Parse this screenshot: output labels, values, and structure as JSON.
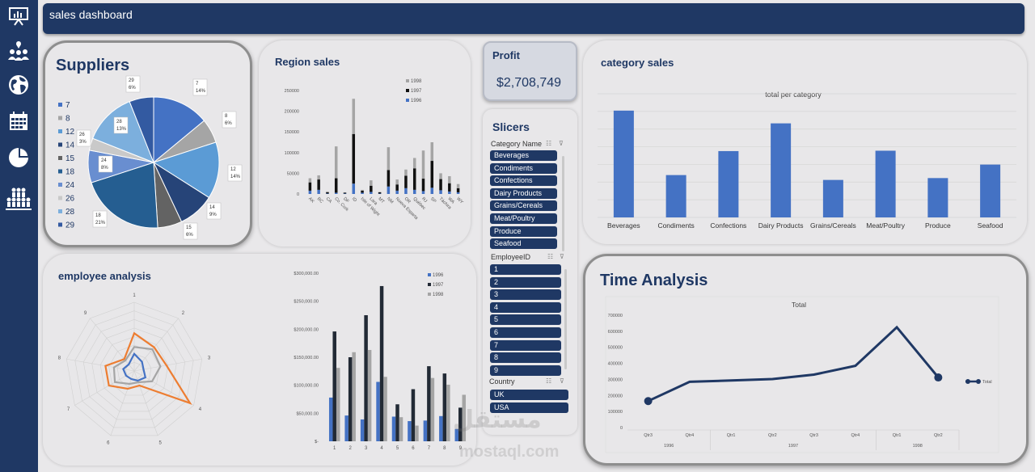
{
  "header": {
    "title": "sales dashboard"
  },
  "sidebar": {
    "icons": [
      "presentation-icon",
      "people-location-icon",
      "globe-icon",
      "calendar-icon",
      "pie-chart-icon",
      "team-icon"
    ]
  },
  "colors": {
    "navy": "#1f3864",
    "blue": "#4472c4",
    "dark": "#262626",
    "gray": "#a5a5a5",
    "orange": "#ed7d31",
    "light_blue": "#5b9bd5"
  },
  "suppliers": {
    "title": "Suppliers",
    "legend": [
      "7",
      "8",
      "12",
      "14",
      "15",
      "18",
      "24",
      "26",
      "28",
      "29"
    ],
    "labels": [
      {
        "name": "7",
        "pct": "14%"
      },
      {
        "name": "8",
        "pct": "6%"
      },
      {
        "name": "12",
        "pct": "14%"
      },
      {
        "name": "14",
        "pct": "9%"
      },
      {
        "name": "15",
        "pct": "6%"
      },
      {
        "name": "18",
        "pct": "21%"
      },
      {
        "name": "24",
        "pct": "8%"
      },
      {
        "name": "26",
        "pct": "3%"
      },
      {
        "name": "28",
        "pct": "13%"
      },
      {
        "name": "29",
        "pct": "6%"
      }
    ]
  },
  "region_sales": {
    "title": "Region sales"
  },
  "profit": {
    "label": "Profit",
    "value": "$2,708,749"
  },
  "slicers": {
    "title": "Slicers",
    "category": {
      "header": "Category Name",
      "items": [
        "Beverages",
        "Condiments",
        "Confections",
        "Dairy Products",
        "Grains/Cereals",
        "Meat/Poultry",
        "Produce",
        "Seafood"
      ]
    },
    "employee": {
      "header": "EmployeeID",
      "items": [
        "1",
        "2",
        "3",
        "4",
        "5",
        "6",
        "7",
        "8",
        "9"
      ]
    },
    "country": {
      "header": "Country",
      "items": [
        "UK",
        "USA"
      ]
    }
  },
  "category_sales": {
    "title": "category sales"
  },
  "employee_analysis": {
    "title": "employee analysis"
  },
  "time_analysis": {
    "title": "Time Analysis"
  },
  "watermark": {
    "text": "مستقل",
    "url": "mostaql.com"
  },
  "chart_data": [
    {
      "type": "pie",
      "categories": [
        "7",
        "8",
        "12",
        "14",
        "15",
        "18",
        "24",
        "26",
        "28",
        "29"
      ],
      "values": [
        14,
        6,
        14,
        9,
        6,
        21,
        8,
        3,
        13,
        6
      ]
    },
    {
      "type": "bar",
      "categories": [
        "AK",
        "BC",
        "CA",
        "Co. Cork",
        "DF",
        "ID",
        "Isle of Wight",
        "Lara",
        "MT",
        "NM",
        "Nueva Esparta",
        "OR",
        "Québec",
        "RJ",
        "SP",
        "Táchira",
        "WA",
        "WY"
      ],
      "series": [
        {
          "name": "1996",
          "values": [
            8000,
            10000,
            1000,
            3000,
            1000,
            25000,
            3000,
            5000,
            1000,
            18000,
            8000,
            14000,
            10000,
            7000,
            15000,
            9000,
            6000,
            4000
          ]
        },
        {
          "name": "1997",
          "values": [
            20000,
            25000,
            3000,
            35000,
            2000,
            120000,
            5000,
            15000,
            3000,
            40000,
            15000,
            30000,
            52000,
            30000,
            65000,
            27000,
            20000,
            10000
          ]
        },
        {
          "name": "1998",
          "values": [
            10000,
            10000,
            2000,
            77000,
            1000,
            85000,
            2000,
            13000,
            1000,
            55000,
            12000,
            15000,
            25000,
            68000,
            45000,
            14000,
            17000,
            10000
          ]
        }
      ],
      "ylim": [
        0,
        250000
      ],
      "yticks": [
        "0",
        "50000",
        "100000",
        "150000",
        "200000",
        "250000"
      ],
      "legend": "top-right"
    },
    {
      "type": "bar",
      "title": "total per category",
      "categories": [
        "Beverages",
        "Condiments",
        "Confections",
        "Dairy Products",
        "Grains/Cereals",
        "Meat/Poultry",
        "Produce",
        "Seafood"
      ],
      "values": [
        285000,
        113000,
        177000,
        251000,
        100000,
        178000,
        105000,
        141000
      ],
      "ylim": [
        0,
        330000
      ],
      "grid": true
    },
    {
      "type": "radar",
      "categories": [
        "1",
        "2",
        "3",
        "4",
        "5",
        "6",
        "7",
        "8",
        "9"
      ],
      "series": [
        {
          "name": "1996",
          "values": [
            2,
            1.4,
            1.1,
            1.5,
            1.2,
            1,
            1.1,
            1.3,
            1
          ]
        },
        {
          "name": "1997",
          "values": [
            4.4,
            3.6,
            3.8,
            7.5,
            1.8,
            2.2,
            3.4,
            3.4,
            1.8
          ]
        },
        {
          "name": "1998",
          "values": [
            2.8,
            3.3,
            3.1,
            2.4,
            1.4,
            1.6,
            2.6,
            2.4,
            1.6
          ]
        }
      ]
    },
    {
      "type": "bar",
      "categories": [
        "1",
        "2",
        "3",
        "4",
        "5",
        "6",
        "7",
        "8",
        "9"
      ],
      "series": [
        {
          "name": "1996",
          "values": [
            78000,
            46000,
            39000,
            106000,
            44000,
            36000,
            37000,
            45000,
            22000
          ]
        },
        {
          "name": "1997",
          "values": [
            196000,
            150000,
            225000,
            277000,
            66000,
            93000,
            134000,
            121000,
            60000
          ]
        },
        {
          "name": "1998",
          "values": [
            131000,
            159000,
            163000,
            115000,
            43000,
            28000,
            113000,
            101000,
            83000
          ]
        }
      ],
      "ylim": [
        0,
        300000
      ],
      "yticks": [
        "$-",
        "$50,000.00",
        "$100,000.00",
        "$150,000.00",
        "$200,000.00",
        "$250,000.00",
        "$300,000.00"
      ],
      "legend": "top-right"
    },
    {
      "type": "line",
      "title": "Total",
      "x": [
        "Qtr3",
        "Qtr4",
        "Qtr1",
        "Qtr2",
        "Qtr3",
        "Qtr4",
        "Qtr1",
        "Qtr2"
      ],
      "years": [
        "1996",
        "1997",
        "1998"
      ],
      "series": [
        {
          "name": "Total",
          "values": [
            165000,
            285000,
            293000,
            302000,
            330000,
            385000,
            625000,
            312000
          ]
        }
      ],
      "ylim": [
        0,
        700000
      ],
      "yticks": [
        "0",
        "100000",
        "200000",
        "300000",
        "400000",
        "500000",
        "600000",
        "700000"
      ],
      "legend": "right"
    }
  ]
}
